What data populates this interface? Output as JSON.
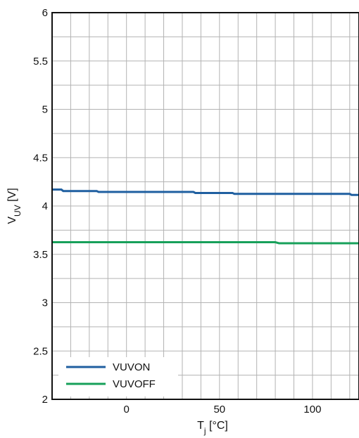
{
  "chart_data": {
    "type": "line",
    "title": "",
    "xlabel": {
      "main": "T",
      "sub": "j",
      "unit": " [°C]"
    },
    "ylabel": {
      "main": "V",
      "sub": "UV",
      "unit": " [V]"
    },
    "xlim": [
      -40,
      125
    ],
    "ylim": [
      2,
      6
    ],
    "x_ticks": [
      0,
      50,
      100
    ],
    "y_ticks": [
      2,
      2.5,
      3,
      3.5,
      4,
      4.5,
      5,
      5.5,
      6
    ],
    "grid": true,
    "legend_position": "bottom-left",
    "series": [
      {
        "name": "VUVON",
        "color": "#1f5fa0",
        "x": [
          -40,
          -35,
          -34,
          -16,
          -15,
          36,
          37,
          57,
          58,
          120,
          121,
          125
        ],
        "y": [
          4.17,
          4.17,
          4.155,
          4.155,
          4.145,
          4.145,
          4.135,
          4.135,
          4.125,
          4.125,
          4.115,
          4.115
        ]
      },
      {
        "name": "VUVOFF",
        "color": "#17a05a",
        "x": [
          -40,
          80,
          82,
          125
        ],
        "y": [
          3.625,
          3.625,
          3.615,
          3.615
        ]
      }
    ]
  }
}
